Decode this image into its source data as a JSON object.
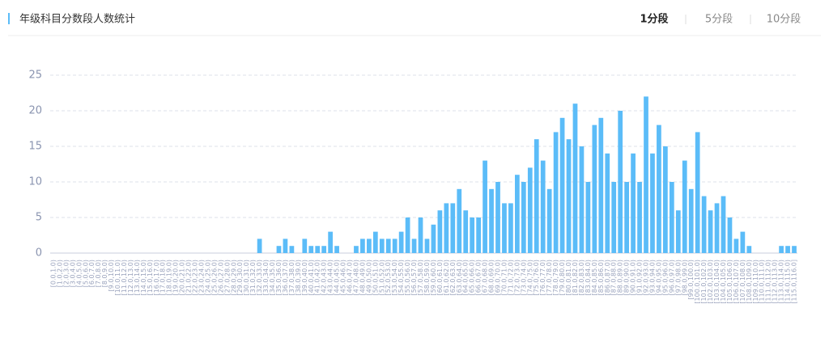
{
  "header": {
    "title": "年级科目分数段人数统计",
    "tabs": [
      "1分段",
      "5分段",
      "10分段"
    ]
  },
  "chart_data": {
    "type": "bar",
    "color": "#5bbcf8",
    "grid": true,
    "ylim": [
      0,
      25
    ],
    "yticks": [
      0,
      5,
      10,
      15,
      20,
      25
    ],
    "categories": [
      "[0.0,1.0)",
      "[1.0,2.0)",
      "[2.0,3.0)",
      "[3.0,4.0)",
      "[4.0,5.0)",
      "[5.0,6.0)",
      "[6.0,7.0)",
      "[7.0,8.0)",
      "[8.0,9.0)",
      "[9.0,10.0)",
      "[10.0,11.0)",
      "[11.0,12.0)",
      "[12.0,13.0)",
      "[13.0,14.0)",
      "[14.0,15.0)",
      "[15.0,16.0)",
      "[16.0,17.0)",
      "[17.0,18.0)",
      "[18.0,19.0)",
      "[19.0,20.0)",
      "[20.0,21.0)",
      "[21.0,22.0)",
      "[22.0,23.0)",
      "[23.0,24.0)",
      "[24.0,25.0)",
      "[25.0,26.0)",
      "[26.0,27.0)",
      "[27.0,28.0)",
      "[28.0,29.0)",
      "[29.0,30.0)",
      "[30.0,31.0)",
      "[31.0,32.0)",
      "[32.0,33.0)",
      "[33.0,34.0)",
      "[34.0,35.0)",
      "[35.0,36.0)",
      "[36.0,37.0)",
      "[37.0,38.0)",
      "[38.0,39.0)",
      "[39.0,40.0)",
      "[40.0,41.0)",
      "[41.0,42.0)",
      "[42.0,43.0)",
      "[43.0,44.0)",
      "[44.0,45.0)",
      "[45.0,46.0)",
      "[46.0,47.0)",
      "[47.0,48.0)",
      "[48.0,49.0)",
      "[49.0,50.0)",
      "[50.0,51.0)",
      "[51.0,52.0)",
      "[52.0,53.0)",
      "[53.0,54.0)",
      "[54.0,55.0)",
      "[55.0,56.0)",
      "[56.0,57.0)",
      "[57.0,58.0)",
      "[58.0,59.0)",
      "[59.0,60.0)",
      "[60.0,61.0)",
      "[61.0,62.0)",
      "[62.0,63.0)",
      "[63.0,64.0)",
      "[64.0,65.0)",
      "[65.0,66.0)",
      "[66.0,67.0)",
      "[67.0,68.0)",
      "[68.0,69.0)",
      "[69.0,70.0)",
      "[70.0,71.0)",
      "[71.0,72.0)",
      "[72.0,73.0)",
      "[73.0,74.0)",
      "[74.0,75.0)",
      "[75.0,76.0)",
      "[76.0,77.0)",
      "[77.0,78.0)",
      "[78.0,79.0)",
      "[79.0,80.0)",
      "[80.0,81.0)",
      "[81.0,82.0)",
      "[82.0,83.0)",
      "[83.0,84.0)",
      "[84.0,85.0)",
      "[85.0,86.0)",
      "[86.0,87.0)",
      "[87.0,88.0)",
      "[88.0,89.0)",
      "[89.0,90.0)",
      "[90.0,91.0)",
      "[91.0,92.0)",
      "[92.0,93.0)",
      "[93.0,94.0)",
      "[94.0,95.0)",
      "[95.0,96.0)",
      "[96.0,97.0)",
      "[97.0,98.0)",
      "[98.0,99.0)",
      "[99.0,100.0)",
      "[100.0,101.0)",
      "[101.0,102.0)",
      "[102.0,103.0)",
      "[103.0,104.0)",
      "[104.0,105.0)",
      "[105.0,106.0)",
      "[106.0,107.0)",
      "[107.0,108.0)",
      "[108.0,109.0)",
      "[109.0,110.0)",
      "[110.0,111.0)",
      "[111.0,112.0)",
      "[112.0,113.0)",
      "[113.0,114.0)",
      "[114.0,115.0)",
      "[115.0,116.0]"
    ],
    "values": [
      0,
      0,
      0,
      0,
      0,
      0,
      0,
      0,
      0,
      0,
      0,
      0,
      0,
      0,
      0,
      0,
      0,
      0,
      0,
      0,
      0,
      0,
      0,
      0,
      0,
      0,
      0,
      0,
      0,
      0,
      0,
      0,
      2,
      0,
      0,
      1,
      2,
      1,
      0,
      2,
      1,
      1,
      1,
      3,
      1,
      0,
      0,
      1,
      2,
      2,
      3,
      2,
      2,
      2,
      3,
      5,
      2,
      5,
      2,
      4,
      6,
      7,
      7,
      9,
      6,
      5,
      5,
      13,
      9,
      10,
      7,
      7,
      11,
      10,
      12,
      16,
      13,
      9,
      17,
      19,
      16,
      21,
      15,
      10,
      18,
      19,
      14,
      10,
      20,
      10,
      14,
      10,
      22,
      14,
      18,
      15,
      10,
      6,
      13,
      9,
      17,
      8,
      6,
      7,
      8,
      5,
      2,
      3,
      1,
      0,
      0,
      0,
      0,
      1,
      1,
      1
    ]
  }
}
